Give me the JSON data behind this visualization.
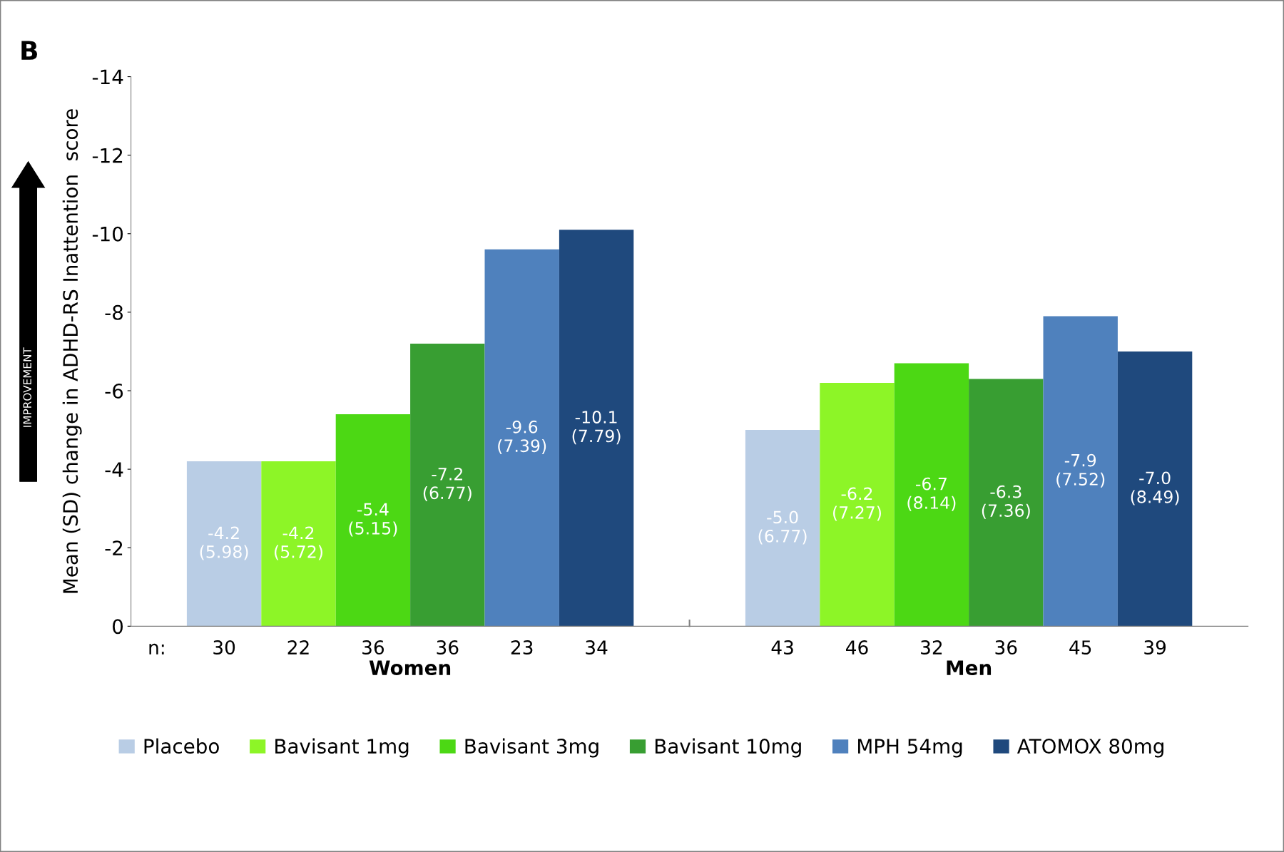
{
  "chart_data": {
    "type": "bar",
    "title": "B",
    "ylabel": "Mean (SD) change in ADHD-RS Inattention  score",
    "categories": [
      "Women",
      "Men"
    ],
    "series": [
      {
        "name": "Placebo",
        "color": "#b9cde5",
        "values": [
          -4.2,
          -5.0
        ],
        "value_labels": [
          "-4.2\n(5.98)",
          "-5.0\n(6.77)"
        ]
      },
      {
        "name": "Bavisant 1mg",
        "color": "#8df527",
        "values": [
          -4.2,
          -6.2
        ],
        "value_labels": [
          "-4.2\n(5.72)",
          "-6.2\n(7.27)"
        ]
      },
      {
        "name": "Bavisant 3mg",
        "color": "#4cd814",
        "values": [
          -5.4,
          -6.7
        ],
        "value_labels": [
          "-5.4\n(5.15)",
          "-6.7\n(8.14)"
        ]
      },
      {
        "name": "Bavisant 10mg",
        "color": "#389e32",
        "values": [
          -7.2,
          -6.3
        ],
        "value_labels": [
          "-7.2\n(6.77)",
          "-6.3\n(7.36)"
        ]
      },
      {
        "name": "MPH 54mg",
        "color": "#4f81bd",
        "values": [
          -9.6,
          -7.9
        ],
        "value_labels": [
          "-9.6\n(7.39)",
          "-7.9\n(7.52)"
        ]
      },
      {
        "name": "ATOMOX 80mg",
        "color": "#1f497d",
        "values": [
          -10.1,
          -7.0
        ],
        "value_labels": [
          "-10.1\n(7.79)",
          "-7.0\n(8.49)"
        ]
      }
    ],
    "ylim": [
      0,
      -14
    ],
    "yticks": [
      -14,
      -12,
      -10,
      -8,
      -6,
      -4,
      -2,
      0
    ],
    "grid": false,
    "legend": "bottom",
    "annotations": [
      "IMPROVEMENT",
      "n:",
      "30",
      "22",
      "36",
      "36",
      "23",
      "34",
      "43",
      "46",
      "32",
      "36",
      "45",
      "39"
    ]
  }
}
